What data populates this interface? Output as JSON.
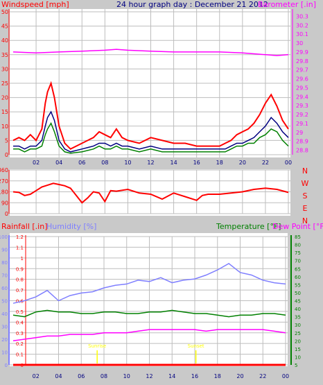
{
  "colors": {
    "background": "#c9c9c9",
    "plot_bg": "#ffffff",
    "grid": "#bdbdbd",
    "wind_max": "#ff0000",
    "wind_avg": "#000080",
    "wind_gust_avg": "#008000",
    "barometer": "#ff00ff",
    "direction": "#ff0000",
    "rainfall": "#ff0000",
    "humidity": "#7f7fff",
    "temperature": "#008000",
    "dewpoint": "#ff00ff",
    "date_blue": "#000080",
    "sun_label": "#ffff00"
  },
  "chart_data": [
    {
      "type": "line",
      "title": "24 hour graph day : December 21 2012",
      "left_axis_label": "Windspeed [mph]",
      "right_axis_label": "Barometer [.in]",
      "x_tick_labels": [
        "02",
        "04",
        "06",
        "08",
        "10",
        "12",
        "14",
        "16",
        "18",
        "20",
        "22",
        "00"
      ],
      "x_range_hours": [
        0,
        24
      ],
      "y_left_ticks": [
        "0",
        "5",
        "10",
        "15",
        "20",
        "25",
        "30",
        "35",
        "40",
        "45",
        "50"
      ],
      "y_left_range": [
        0,
        50
      ],
      "y_right_ticks": [
        "28.8",
        "28.9",
        "29",
        "29.1",
        "29.2",
        "29.3",
        "29.4",
        "29.5",
        "29.6",
        "29.7",
        "29.8",
        "29.9",
        "30",
        "30.1",
        "30.2",
        "30.3"
      ],
      "y_right_range": [
        28.75,
        30.35
      ],
      "series": [
        {
          "key": "wind_max",
          "color": "#ff0000",
          "axis": "left",
          "x": [
            0,
            0.5,
            1,
            1.5,
            2,
            2.5,
            2.8,
            3,
            3.3,
            3.6,
            4,
            4.5,
            5,
            6,
            7,
            7.5,
            8,
            8.5,
            9,
            9.5,
            10,
            11,
            12,
            13,
            14,
            15,
            16,
            17,
            18,
            18.5,
            19,
            19.5,
            20,
            20.5,
            21,
            21.5,
            22,
            22.5,
            23,
            23.5,
            24
          ],
          "values": [
            5,
            6,
            5,
            7,
            5,
            9,
            18,
            22,
            25,
            20,
            10,
            4,
            2,
            4,
            6,
            8,
            7,
            6,
            9,
            6,
            5,
            4,
            6,
            5,
            4,
            4,
            3,
            3,
            3,
            4,
            5,
            7,
            8,
            9,
            11,
            14,
            18,
            21,
            17,
            12,
            9
          ]
        },
        {
          "key": "wind_avg",
          "color": "#000080",
          "axis": "left",
          "x": [
            0,
            0.5,
            1,
            1.5,
            2,
            2.5,
            2.8,
            3,
            3.3,
            3.6,
            4,
            4.5,
            5,
            6,
            7,
            7.5,
            8,
            8.5,
            9,
            9.5,
            10,
            11,
            12,
            13,
            14,
            15,
            16,
            17,
            18,
            18.5,
            19,
            19.5,
            20,
            20.5,
            21,
            21.5,
            22,
            22.5,
            23,
            23.5,
            24
          ],
          "values": [
            3,
            3,
            2,
            3,
            3,
            5,
            10,
            13,
            15,
            12,
            5,
            2,
            1,
            2,
            3,
            4,
            4,
            3,
            4,
            3,
            3,
            2,
            3,
            2,
            2,
            2,
            2,
            2,
            2,
            2,
            3,
            4,
            4,
            5,
            6,
            8,
            10,
            13,
            11,
            8,
            6
          ]
        },
        {
          "key": "wind_gust_avg",
          "color": "#008000",
          "axis": "left",
          "x": [
            0,
            0.5,
            1,
            1.5,
            2,
            2.5,
            2.8,
            3,
            3.3,
            3.6,
            4,
            4.5,
            5,
            6,
            7,
            7.5,
            8,
            8.5,
            9,
            9.5,
            10,
            11,
            12,
            13,
            14,
            15,
            16,
            17,
            18,
            18.5,
            19,
            19.5,
            20,
            20.5,
            21,
            21.5,
            22,
            22.5,
            23,
            23.5,
            24
          ],
          "values": [
            2,
            2,
            1,
            2,
            2,
            3,
            7,
            9,
            11,
            8,
            3,
            1,
            0.5,
            1,
            2,
            3,
            2,
            2,
            3,
            2,
            2,
            1,
            2,
            1,
            1,
            1,
            1,
            1,
            1,
            1,
            2,
            3,
            3,
            4,
            4,
            6,
            7,
            9,
            8,
            5,
            3
          ]
        },
        {
          "key": "barometer",
          "color": "#ff00ff",
          "axis": "right",
          "x": [
            0,
            2,
            4,
            6,
            8,
            9,
            10,
            12,
            14,
            16,
            18,
            20,
            22,
            23,
            24
          ],
          "values": [
            29.9,
            29.89,
            29.9,
            29.91,
            29.92,
            29.93,
            29.92,
            29.91,
            29.9,
            29.9,
            29.9,
            29.89,
            29.87,
            29.86,
            29.87
          ]
        }
      ]
    },
    {
      "type": "line",
      "right_axis_labels": [
        "N",
        "W",
        "S",
        "E",
        "N"
      ],
      "y_left_ticks": [
        "0",
        "90",
        "180",
        "270",
        "360"
      ],
      "y_left_range": [
        0,
        360
      ],
      "series": [
        {
          "key": "wind_direction",
          "color": "#ff0000",
          "x": [
            0,
            0.5,
            1,
            1.5,
            2,
            2.5,
            3,
            3.5,
            4,
            4.5,
            5,
            5.5,
            6,
            6.5,
            7,
            7.5,
            8,
            8.5,
            9,
            10,
            11,
            12,
            13,
            14,
            15,
            16,
            16.5,
            17,
            18,
            19,
            20,
            21,
            22,
            23,
            24
          ],
          "values": [
            180,
            175,
            150,
            160,
            190,
            220,
            235,
            250,
            240,
            230,
            210,
            150,
            90,
            130,
            180,
            170,
            100,
            190,
            185,
            200,
            170,
            160,
            120,
            170,
            140,
            110,
            150,
            160,
            160,
            170,
            180,
            200,
            210,
            200,
            175
          ]
        }
      ]
    },
    {
      "type": "line",
      "rain_label": "Rainfall [.in]",
      "humidity_label": "Humidity [%]",
      "temperature_label": "Temperature [°F]",
      "dewpoint_label": "Dew Point [°F]",
      "rain_ticks": [
        "0",
        "0.1",
        "0.2",
        "0.3",
        "0.4",
        "0.5",
        "0.6",
        "0.7",
        "0.8",
        "0.9",
        "1",
        "1.1",
        "1.2"
      ],
      "rain_range": [
        0,
        1.2
      ],
      "humidity_ticks": [
        "0",
        "10",
        "20",
        "30",
        "40",
        "50",
        "60",
        "70",
        "80",
        "90",
        "100"
      ],
      "humidity_range": [
        0,
        100
      ],
      "temp_ticks": [
        "5",
        "10",
        "15",
        "20",
        "25",
        "30",
        "35",
        "40",
        "45",
        "50",
        "55",
        "60",
        "65",
        "70",
        "75",
        "80",
        "85"
      ],
      "temp_range": [
        5,
        85
      ],
      "sunrise_label": "Sunrise",
      "sunset_label": "Sunset",
      "sunrise_hour": 7.4,
      "sunset_hour": 16.1,
      "series": [
        {
          "key": "rainfall",
          "color": "#ff0000",
          "axis": "rain",
          "x": [
            0,
            24
          ],
          "values": [
            0,
            0
          ]
        },
        {
          "key": "humidity",
          "color": "#7f7fff",
          "axis": "humidity",
          "x": [
            0,
            1,
            2,
            3,
            4,
            5,
            6,
            7,
            8,
            9,
            10,
            11,
            12,
            13,
            14,
            15,
            16,
            17,
            18,
            19,
            20,
            21,
            22,
            23,
            24
          ],
          "values": [
            48,
            50,
            53,
            58,
            50,
            54,
            56,
            57,
            60,
            62,
            63,
            66,
            65,
            68,
            64,
            66,
            67,
            70,
            74,
            79,
            72,
            70,
            66,
            64,
            63
          ]
        },
        {
          "key": "temperature",
          "color": "#008000",
          "axis": "temp",
          "x": [
            0,
            1,
            2,
            3,
            4,
            5,
            6,
            7,
            8,
            9,
            10,
            11,
            12,
            13,
            14,
            15,
            16,
            17,
            18,
            19,
            20,
            21,
            22,
            23,
            24
          ],
          "values": [
            36,
            35,
            38,
            39,
            38,
            38,
            37,
            37,
            38,
            38,
            37,
            37,
            38,
            38,
            39,
            38,
            37,
            37,
            36,
            35,
            36,
            36,
            37,
            37,
            36
          ]
        },
        {
          "key": "dewpoint",
          "color": "#ff00ff",
          "axis": "temp",
          "x": [
            0,
            1,
            2,
            3,
            4,
            5,
            6,
            7,
            8,
            9,
            10,
            11,
            12,
            13,
            14,
            15,
            16,
            17,
            18,
            19,
            20,
            21,
            22,
            23,
            24
          ],
          "values": [
            20,
            21,
            22,
            23,
            23,
            24,
            24,
            24,
            25,
            25,
            25,
            26,
            27,
            27,
            27,
            27,
            27,
            26,
            27,
            27,
            27,
            27,
            27,
            26,
            25
          ]
        }
      ]
    }
  ]
}
